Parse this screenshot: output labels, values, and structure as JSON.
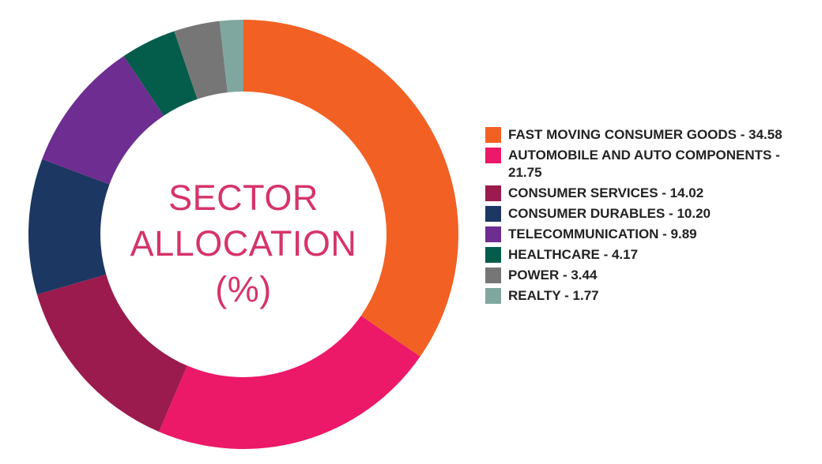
{
  "chart_data": {
    "type": "pie",
    "donut": true,
    "title_lines": [
      "SECTOR",
      "ALLOCATION",
      "(%)"
    ],
    "slices": [
      {
        "label": "FAST MOVING CONSUMER GOODS - 34.58",
        "value": 34.58,
        "color": "#f26024"
      },
      {
        "label": "AUTOMOBILE AND AUTO COMPONENTS - 21.75",
        "value": 21.75,
        "color": "#ec1868"
      },
      {
        "label": "CONSUMER SERVICES - 14.02",
        "value": 14.02,
        "color": "#9b1b4e"
      },
      {
        "label": "CONSUMER DURABLES - 10.20",
        "value": 10.2,
        "color": "#1c3761"
      },
      {
        "label": "TELECOMMUNICATION - 9.89",
        "value": 9.89,
        "color": "#6e2d91"
      },
      {
        "label": "HEALTHCARE - 4.17",
        "value": 4.17,
        "color": "#045d4b"
      },
      {
        "label": "POWER - 3.44",
        "value": 3.44,
        "color": "#767676"
      },
      {
        "label": "REALTY - 1.77",
        "value": 1.77,
        "color": "#7fa79f"
      }
    ],
    "legend_position": "right"
  }
}
